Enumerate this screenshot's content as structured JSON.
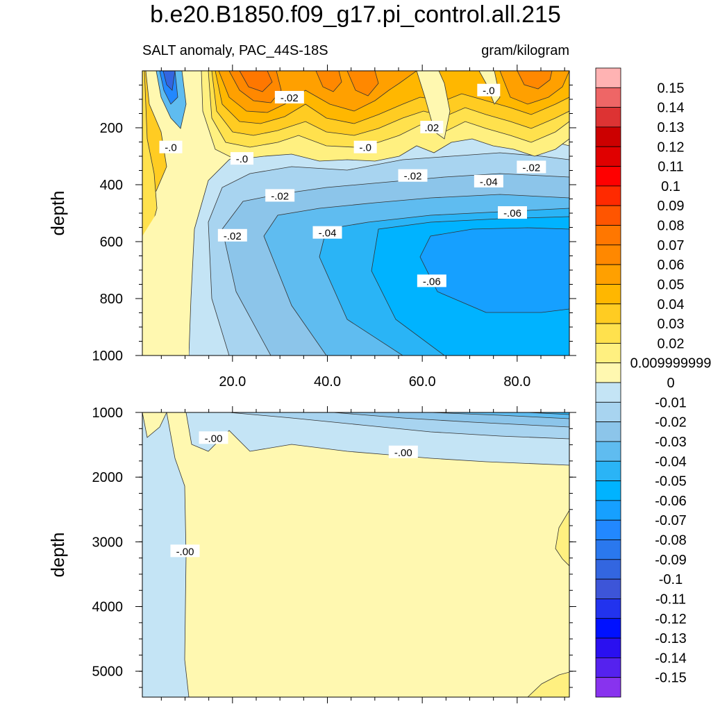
{
  "title": "b.e20.B1850.f09_g17.pi_control.all.215",
  "subtitle_left": "SALT anomaly, PAC_44S-18S",
  "subtitle_right": "gram/kilogram",
  "chart_data": [
    {
      "type": "heatmap",
      "panel": "upper",
      "ylabel": "depth",
      "xlabel": "",
      "ylim": [
        0,
        1000
      ],
      "y_reversed": true,
      "xlim": [
        1,
        91
      ],
      "x_ticks": [
        "20.0",
        "40.0",
        "60.0",
        "80.0"
      ],
      "x_tick_values": [
        20,
        40,
        60,
        80
      ],
      "y_ticks": [
        "200",
        "400",
        "600",
        "800",
        "1000"
      ],
      "y_tick_values": [
        200,
        400,
        600,
        800,
        1000
      ],
      "contour_labels": [
        {
          "text": "-.02",
          "x": 32,
          "y": 95
        },
        {
          "text": "-.0",
          "x": 7,
          "y": 270
        },
        {
          "text": "-.0",
          "x": 22,
          "y": 310
        },
        {
          "text": "-.0",
          "x": 48,
          "y": 270
        },
        {
          "text": "-.02",
          "x": 30,
          "y": 440
        },
        {
          "text": "-.02",
          "x": 20,
          "y": 580
        },
        {
          "text": "-.04",
          "x": 40,
          "y": 570
        },
        {
          "text": "-.02",
          "x": 58,
          "y": 370
        },
        {
          "text": "-.0",
          "x": 74,
          "y": 70
        },
        {
          "text": ".02",
          "x": 62,
          "y": 200
        },
        {
          "text": "-.04",
          "x": 74,
          "y": 390
        },
        {
          "text": "-.02",
          "x": 83,
          "y": 340
        },
        {
          "text": "-.06",
          "x": 79,
          "y": 500
        },
        {
          "text": "-.06",
          "x": 62,
          "y": 740
        }
      ]
    },
    {
      "type": "heatmap",
      "panel": "lower",
      "ylabel": "depth",
      "xlabel": "",
      "ylim": [
        1000,
        5400
      ],
      "y_reversed": true,
      "xlim": [
        1,
        91
      ],
      "y_ticks": [
        "1000",
        "2000",
        "3000",
        "4000",
        "5000"
      ],
      "y_tick_values": [
        1000,
        2000,
        3000,
        4000,
        5000
      ],
      "contour_labels": [
        {
          "text": "-.00",
          "x": 16,
          "y": 1400
        },
        {
          "text": "-.00",
          "x": 56,
          "y": 1620
        },
        {
          "text": "-.00",
          "x": 10,
          "y": 3150
        }
      ]
    }
  ],
  "colorbar": {
    "labels": [
      "0.15",
      "0.14",
      "0.13",
      "0.12",
      "0.11",
      "0.1",
      "0.09",
      "0.08",
      "0.07",
      "0.06",
      "0.05",
      "0.04",
      "0.03",
      "0.02",
      "0.009999999",
      "0",
      "-0.01",
      "-0.02",
      "-0.03",
      "-0.04",
      "-0.05",
      "-0.06",
      "-0.07",
      "-0.08",
      "-0.09",
      "-0.1",
      "-0.11",
      "-0.12",
      "-0.13",
      "-0.14",
      "-0.15"
    ],
    "colors": [
      "#ffb3b3",
      "#ee6666",
      "#dd3333",
      "#cc0000",
      "#e00000",
      "#ff0000",
      "#ff2a00",
      "#ff5500",
      "#ff7700",
      "#ff8800",
      "#ffa000",
      "#ffb700",
      "#ffcc22",
      "#ffe14d",
      "#fff080",
      "#fff8b0",
      "#c4e4f5",
      "#a8d4f0",
      "#8cc5ea",
      "#5fbcf0",
      "#2ab4f6",
      "#00b3ff",
      "#16a0ff",
      "#2288ff",
      "#2a78ee",
      "#3366e0",
      "#3d55d8",
      "#2233ee",
      "#0011ff",
      "#2a10f0",
      "#5522ee",
      "#8833ee"
    ]
  }
}
